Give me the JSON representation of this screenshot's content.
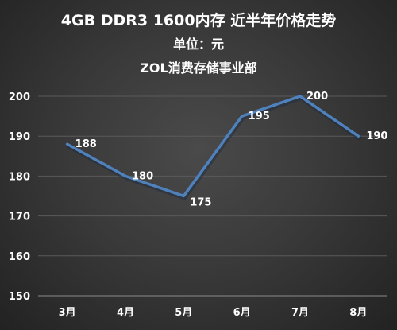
{
  "header": {
    "title": "4GB DDR3 1600内存 近半年价格走势",
    "unit": "单位：元",
    "source": "ZOL消费存储事业部"
  },
  "chart_data": {
    "type": "line",
    "title": "4GB DDR3 1600内存 近半年价格走势",
    "subtitle": "单位：元",
    "annotation": "ZOL消费存储事业部",
    "categories": [
      "3月",
      "4月",
      "5月",
      "6月",
      "7月",
      "8月"
    ],
    "series": [
      {
        "values": [
          188,
          180,
          175,
          195,
          200,
          190
        ]
      }
    ],
    "data_labels": [
      "188",
      "180",
      "175",
      "195",
      "200",
      "190"
    ],
    "xlabel": "",
    "ylabel": "",
    "ylim": [
      150,
      200
    ],
    "yticks": [
      150,
      160,
      170,
      180,
      190,
      200
    ],
    "ytick_labels": [
      "150",
      "160",
      "170",
      "180",
      "190",
      "200"
    ],
    "grid": true,
    "legend": "none",
    "colors": {
      "line": "#4f81bd",
      "grid": "#5a5a5a",
      "axis": "#8a8a8a",
      "text": "#ffffff"
    }
  }
}
